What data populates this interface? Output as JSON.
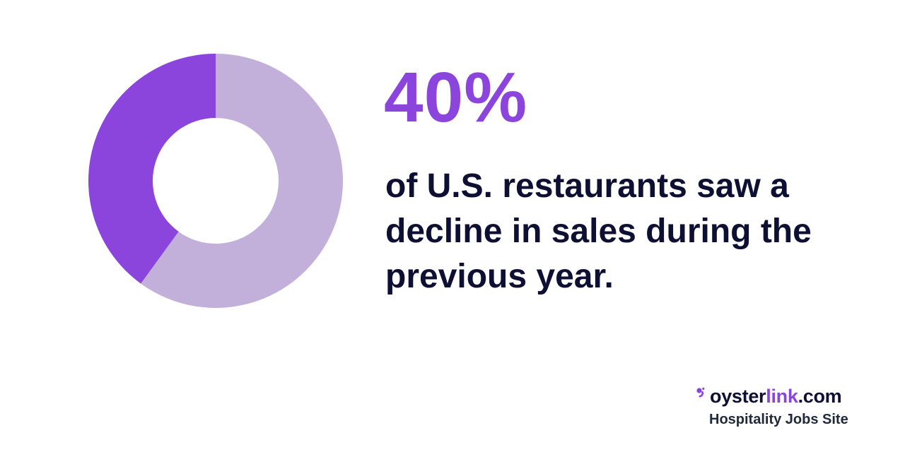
{
  "chart_data": {
    "type": "pie",
    "variant": "donut",
    "slices": [
      {
        "value": 40,
        "color": "#8b45dc"
      },
      {
        "value": 60,
        "color": "#c2b0db"
      }
    ]
  },
  "stat": {
    "value": "40%",
    "lines": [
      "of U.S. restaurants saw a",
      "decline in sales during the",
      "previous year."
    ]
  },
  "brand": {
    "name_part1": "oyster",
    "name_part2": "link",
    "name_part3": ".com",
    "tagline": "Hospitality Jobs Site",
    "accent_color": "#8b45dc",
    "text_color": "#0d1033"
  }
}
